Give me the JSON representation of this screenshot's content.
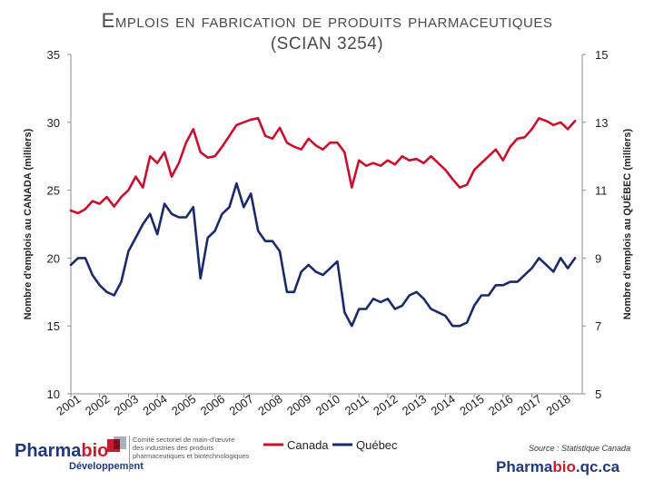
{
  "title_line1": "Emplois en fabrication de produits pharmaceutiques",
  "title_line2": "(SCIAN 3254)",
  "chart_data": {
    "type": "line",
    "title": "Emplois en fabrication de produits pharmaceutiques (SCIAN 3254)",
    "ylabel_left": "Nombre d'emplois au CANADA (milliers)",
    "ylabel_right": "Nombre d'emplois au QUÉBEC (milliers)",
    "ylim_left": [
      10,
      35
    ],
    "ylim_right": [
      5,
      15
    ],
    "yticks_left": [
      "35",
      "30",
      "25",
      "20",
      "15",
      "10"
    ],
    "yticks_right": [
      "15",
      "13",
      "11",
      "9",
      "7",
      "5"
    ],
    "xticks": [
      "2001",
      "2002",
      "2003",
      "2004",
      "2005",
      "2006",
      "2007",
      "2008",
      "2009",
      "2010",
      "2011",
      "2012",
      "2013",
      "2014",
      "2015",
      "2016",
      "2017",
      "2018"
    ],
    "xlim": [
      2001,
      2018.75
    ],
    "grid": false,
    "legend_position": "bottom",
    "series": [
      {
        "name": "Canada",
        "axis": "left",
        "color": "#c8102e",
        "x": [
          2001.0,
          2001.25,
          2001.5,
          2001.75,
          2002.0,
          2002.25,
          2002.5,
          2002.75,
          2003.0,
          2003.25,
          2003.5,
          2003.75,
          2004.0,
          2004.25,
          2004.5,
          2004.75,
          2005.0,
          2005.25,
          2005.5,
          2005.75,
          2006.0,
          2006.25,
          2006.5,
          2006.75,
          2007.0,
          2007.25,
          2007.5,
          2007.75,
          2008.0,
          2008.25,
          2008.5,
          2008.75,
          2009.0,
          2009.25,
          2009.5,
          2009.75,
          2010.0,
          2010.25,
          2010.5,
          2010.75,
          2011.0,
          2011.25,
          2011.5,
          2011.75,
          2012.0,
          2012.25,
          2012.5,
          2012.75,
          2013.0,
          2013.25,
          2013.5,
          2013.75,
          2014.0,
          2014.25,
          2014.5,
          2014.75,
          2015.0,
          2015.25,
          2015.5,
          2015.75,
          2016.0,
          2016.25,
          2016.5,
          2016.75,
          2017.0,
          2017.25,
          2017.5,
          2017.75,
          2018.0,
          2018.25,
          2018.5
        ],
        "values": [
          23.5,
          23.3,
          23.6,
          24.2,
          24.0,
          24.5,
          23.8,
          24.5,
          25.0,
          26.0,
          25.2,
          27.5,
          27.0,
          27.8,
          26.0,
          27.0,
          28.5,
          29.5,
          27.8,
          27.4,
          27.5,
          28.2,
          29.0,
          29.8,
          30.0,
          30.2,
          30.3,
          29.0,
          28.8,
          29.6,
          28.5,
          28.2,
          28.0,
          28.8,
          28.3,
          28.0,
          28.5,
          28.5,
          27.8,
          25.2,
          27.2,
          26.8,
          27.0,
          26.8,
          27.2,
          26.9,
          27.5,
          27.2,
          27.3,
          27.0,
          27.5,
          27.0,
          26.5,
          25.8,
          25.2,
          25.4,
          26.5,
          27.0,
          27.5,
          28.0,
          27.2,
          28.2,
          28.8,
          28.9,
          29.5,
          30.3,
          30.1,
          29.8,
          30.0,
          29.5,
          30.1
        ]
      },
      {
        "name": "Québec",
        "axis": "right",
        "color": "#1b2a6b",
        "x": [
          2001.0,
          2001.25,
          2001.5,
          2001.75,
          2002.0,
          2002.25,
          2002.5,
          2002.75,
          2003.0,
          2003.25,
          2003.5,
          2003.75,
          2004.0,
          2004.25,
          2004.5,
          2004.75,
          2005.0,
          2005.25,
          2005.5,
          2005.75,
          2006.0,
          2006.25,
          2006.5,
          2006.75,
          2007.0,
          2007.25,
          2007.5,
          2007.75,
          2008.0,
          2008.25,
          2008.5,
          2008.75,
          2009.0,
          2009.25,
          2009.5,
          2009.75,
          2010.0,
          2010.25,
          2010.5,
          2010.75,
          2011.0,
          2011.25,
          2011.5,
          2011.75,
          2012.0,
          2012.25,
          2012.5,
          2012.75,
          2013.0,
          2013.25,
          2013.5,
          2013.75,
          2014.0,
          2014.25,
          2014.5,
          2014.75,
          2015.0,
          2015.25,
          2015.5,
          2015.75,
          2016.0,
          2016.25,
          2016.5,
          2016.75,
          2017.0,
          2017.25,
          2017.5,
          2017.75,
          2018.0,
          2018.25,
          2018.5
        ],
        "values": [
          8.8,
          9.0,
          9.0,
          8.5,
          8.2,
          8.0,
          7.9,
          8.3,
          9.2,
          9.6,
          10.0,
          10.3,
          9.7,
          10.6,
          10.3,
          10.2,
          10.2,
          10.5,
          8.4,
          9.6,
          9.8,
          10.3,
          10.5,
          11.2,
          10.5,
          10.9,
          9.8,
          9.5,
          9.5,
          9.2,
          8.0,
          8.0,
          8.6,
          8.8,
          8.6,
          8.5,
          8.7,
          8.9,
          7.4,
          7.0,
          7.5,
          7.5,
          7.8,
          7.7,
          7.8,
          7.5,
          7.6,
          7.9,
          8.0,
          7.8,
          7.5,
          7.4,
          7.3,
          7.0,
          7.0,
          7.1,
          7.6,
          7.9,
          7.9,
          8.2,
          8.2,
          8.3,
          8.3,
          8.5,
          8.7,
          9.0,
          8.8,
          8.6,
          9.0,
          8.7,
          9.0
        ]
      }
    ]
  },
  "legend": {
    "canada": "Canada",
    "quebec": "Québec"
  },
  "logo": {
    "name_part1": "Pharma",
    "name_part2": "bio",
    "subtitle": "Développement",
    "desc_line1": "Comité sectoriel de main-d'œuvre",
    "desc_line2": "des industries des produits",
    "desc_line3": "pharmaceutiques et biotechnologiques"
  },
  "source": "Source : Statistique Canada",
  "site": {
    "part1": "Pharma",
    "part2": "bio",
    "part3": ".qc.ca"
  },
  "colors": {
    "canada": "#c8102e",
    "quebec": "#1b2a6b",
    "brand_blue": "#1f3a7a",
    "brand_red": "#c41e2e"
  }
}
